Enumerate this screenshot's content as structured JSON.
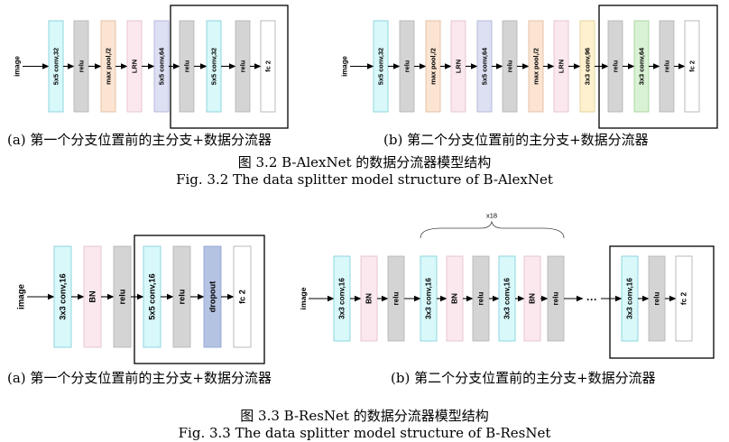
{
  "fig_32": {
    "a": {
      "input": "image",
      "blocks": [
        {
          "label": "5x5 conv,32",
          "color": "#d8f8fa",
          "stroke": "#79cdd6"
        },
        {
          "label": "relu",
          "color": "#d4d4d4",
          "stroke": "#b2b2b2"
        },
        {
          "label": "max pool,/2",
          "color": "#fbe4d2",
          "stroke": "#e0b796"
        },
        {
          "label": "LRN",
          "color": "#fbe8ee",
          "stroke": "#e2bcc8"
        },
        {
          "label": "5x5 conv,64",
          "color": "#dde0f2",
          "stroke": "#aab0d6"
        },
        {
          "label": "relu",
          "color": "#d4d4d4",
          "stroke": "#b2b2b2"
        },
        {
          "label": "5x5 conv,32",
          "color": "#d8f8fa",
          "stroke": "#79cdd6"
        },
        {
          "label": "relu",
          "color": "#d4d4d4",
          "stroke": "#b2b2b2"
        },
        {
          "label": "fc 2",
          "color": "#ffffff",
          "stroke": "#aaaaaa"
        }
      ],
      "caption": "(a)   第一个分支位置前的主分支+数据分流器"
    },
    "b": {
      "input": "image",
      "blocks": [
        {
          "label": "5x5 conv,32",
          "color": "#d8f8fa",
          "stroke": "#79cdd6"
        },
        {
          "label": "relu",
          "color": "#d4d4d4",
          "stroke": "#b2b2b2"
        },
        {
          "label": "max pool,/2",
          "color": "#fbe4d2",
          "stroke": "#e0b796"
        },
        {
          "label": "LRN",
          "color": "#fbe8ee",
          "stroke": "#e2bcc8"
        },
        {
          "label": "5x5 conv,64",
          "color": "#dde0f2",
          "stroke": "#aab0d6"
        },
        {
          "label": "relu",
          "color": "#d4d4d4",
          "stroke": "#b2b2b2"
        },
        {
          "label": "max pool,/2",
          "color": "#fbe4d2",
          "stroke": "#e0b796"
        },
        {
          "label": "LRN",
          "color": "#fbe8ee",
          "stroke": "#e2bcc8"
        },
        {
          "label": "3x3 conv,96",
          "color": "#fdf1cf",
          "stroke": "#e2cb8a"
        },
        {
          "label": "relu",
          "color": "#d4d4d4",
          "stroke": "#b2b2b2"
        },
        {
          "label": "3x3 conv,64",
          "color": "#d9f1d4",
          "stroke": "#9fcf94"
        },
        {
          "label": "relu",
          "color": "#d4d4d4",
          "stroke": "#b2b2b2"
        },
        {
          "label": "fc 2",
          "color": "#ffffff",
          "stroke": "#aaaaaa"
        }
      ],
      "caption": "(b)   第二个分支位置前的主分支+数据分流器"
    },
    "title_cn": "图 3.2 B-AlexNet 的数据分流器模型结构",
    "title_en": "Fig. 3.2 The data splitter model structure of B-AlexNet"
  },
  "fig_33": {
    "a": {
      "input": "image",
      "blocks": [
        {
          "label": "3x3 conv,16",
          "color": "#d8f8fa",
          "stroke": "#79cdd6"
        },
        {
          "label": "BN",
          "color": "#fbe8ee",
          "stroke": "#e2bcc8"
        },
        {
          "label": "relu",
          "color": "#d4d4d4",
          "stroke": "#b2b2b2"
        },
        {
          "label": "5x5 conv,16",
          "color": "#d8f8fa",
          "stroke": "#79cdd6"
        },
        {
          "label": "relu",
          "color": "#d4d4d4",
          "stroke": "#b2b2b2"
        },
        {
          "label": "dropout",
          "color": "#b4c3e2",
          "stroke": "#8aa0cf"
        },
        {
          "label": "fc 2",
          "color": "#ffffff",
          "stroke": "#aaaaaa"
        }
      ],
      "caption": "(a)   第一个分支位置前的主分支+数据分流器"
    },
    "b": {
      "input": "image",
      "blocks": [
        {
          "label": "3x3 conv,16",
          "color": "#d8f8fa",
          "stroke": "#79cdd6"
        },
        {
          "label": "BN",
          "color": "#fbe8ee",
          "stroke": "#e2bcc8"
        },
        {
          "label": "relu",
          "color": "#d4d4d4",
          "stroke": "#b2b2b2"
        },
        {
          "label": "3x3 conv,16",
          "color": "#d8f8fa",
          "stroke": "#79cdd6"
        },
        {
          "label": "BN",
          "color": "#fbe8ee",
          "stroke": "#e2bcc8"
        },
        {
          "label": "relu",
          "color": "#d4d4d4",
          "stroke": "#b2b2b2"
        },
        {
          "label": "3x3 conv,16",
          "color": "#d8f8fa",
          "stroke": "#79cdd6"
        },
        {
          "label": "BN",
          "color": "#fbe8ee",
          "stroke": "#e2bcc8"
        },
        {
          "label": "relu",
          "color": "#d4d4d4",
          "stroke": "#b2b2b2"
        },
        {
          "label": "3x3 conv,16",
          "color": "#d8f8fa",
          "stroke": "#79cdd6"
        },
        {
          "label": "relu",
          "color": "#d4d4d4",
          "stroke": "#b2b2b2"
        },
        {
          "label": "fc 2",
          "color": "#ffffff",
          "stroke": "#aaaaaa"
        }
      ],
      "repeat_label": "x18",
      "ellipsis": "···",
      "caption": "(b)   第二个分支位置前的主分支+数据分流器"
    },
    "title_cn": "图 3.3 B-ResNet 的数据分流器模型结构",
    "title_en": "Fig. 3.3 The data splitter model structure of B-ResNet"
  }
}
